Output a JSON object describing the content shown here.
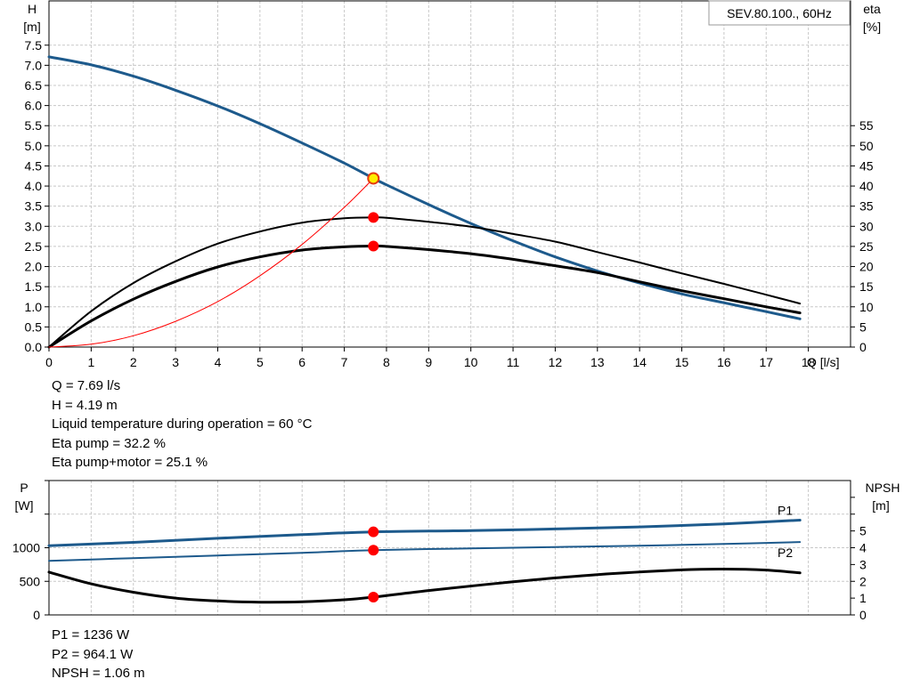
{
  "chart_data": [
    {
      "type": "line",
      "title": "SEV.80.100., 60Hz",
      "xlabel": "Q [l/s]",
      "xlim": [
        0,
        19
      ],
      "xticks": [
        0,
        1,
        2,
        3,
        4,
        5,
        6,
        7,
        8,
        9,
        10,
        11,
        12,
        13,
        14,
        15,
        16,
        17,
        18
      ],
      "ylabel_left": [
        "H",
        "[m]"
      ],
      "ylim_left": [
        0,
        8.6
      ],
      "yticks_left": [
        "0.0",
        "0.5",
        "1.0",
        "1.5",
        "2.0",
        "2.5",
        "3.0",
        "3.5",
        "4.0",
        "4.5",
        "5.0",
        "5.5",
        "6.0",
        "6.5",
        "7.0",
        "7.5"
      ],
      "ylabel_right": [
        "eta",
        "[%]"
      ],
      "ylim_right": [
        0,
        86
      ],
      "yticks_right": [
        "0",
        "5",
        "10",
        "15",
        "20",
        "25",
        "30",
        "35",
        "40",
        "45",
        "50",
        "55"
      ],
      "grid": true,
      "series": [
        {
          "axis": "left",
          "color": "#1d5a8c",
          "x": [
            0,
            1,
            2,
            3,
            4,
            5,
            6,
            7,
            7.69,
            8,
            9,
            10,
            11,
            12,
            13,
            14,
            15,
            16,
            17,
            17.8
          ],
          "y": [
            7.21,
            7.01,
            6.73,
            6.38,
            5.99,
            5.55,
            5.07,
            4.57,
            4.19,
            4.03,
            3.54,
            3.07,
            2.64,
            2.24,
            1.89,
            1.59,
            1.32,
            1.1,
            0.88,
            0.7
          ]
        },
        {
          "axis": "right",
          "color": "#000000",
          "x": [
            0,
            1,
            2,
            3,
            4,
            5,
            6,
            7,
            7.69,
            8,
            9,
            10,
            11,
            12,
            13,
            14,
            15,
            16,
            17,
            17.8
          ],
          "y": [
            0,
            8.9,
            15.9,
            21.3,
            25.7,
            28.7,
            30.9,
            32.0,
            32.2,
            32.1,
            31.1,
            29.9,
            28.1,
            26.2,
            23.6,
            21.0,
            18.3,
            15.7,
            13.0,
            10.8
          ]
        },
        {
          "axis": "right",
          "color": "#000000",
          "x": [
            0,
            1,
            2,
            3,
            4,
            5,
            6,
            7,
            7.69,
            8,
            9,
            10,
            11,
            12,
            13,
            14,
            15,
            16,
            17,
            17.8
          ],
          "y": [
            0,
            6.5,
            11.9,
            16.3,
            19.9,
            22.4,
            24.1,
            24.9,
            25.1,
            25.0,
            24.2,
            23.2,
            21.8,
            20.2,
            18.5,
            16.2,
            14.0,
            12.0,
            10.0,
            8.5
          ]
        },
        {
          "axis": "left",
          "color": "#ff0000",
          "x": [
            0,
            1,
            2,
            3,
            4,
            5,
            6,
            7,
            7.69
          ],
          "y": [
            0,
            0.07,
            0.28,
            0.64,
            1.13,
            1.77,
            2.55,
            3.47,
            4.19
          ]
        }
      ],
      "markers": [
        {
          "axis": "left",
          "x": 7.69,
          "y": 4.19,
          "color": "#ffee00",
          "stroke": "#e53b10"
        },
        {
          "axis": "right",
          "x": 7.69,
          "y": 32.2,
          "color": "#ff0000"
        },
        {
          "axis": "right",
          "x": 7.69,
          "y": 25.1,
          "color": "#ff0000"
        }
      ]
    },
    {
      "type": "line",
      "ylabel_left": [
        "P",
        "[W]"
      ],
      "ylim_left": [
        0,
        2000
      ],
      "yticks_left": [
        "0",
        "500",
        "1000"
      ],
      "ylabel_right": [
        "NPSH",
        "[m]"
      ],
      "ylim_right": [
        0,
        8
      ],
      "yticks_right": [
        "0",
        "1",
        "2",
        "3",
        "4",
        "5"
      ],
      "grid": true,
      "series": [
        {
          "name": "P1",
          "axis": "left",
          "color": "#1d5a8c",
          "x": [
            0,
            2,
            4,
            6,
            7.69,
            10,
            12,
            14,
            16,
            17.8
          ],
          "y": [
            1030,
            1080,
            1140,
            1195,
            1236,
            1255,
            1280,
            1310,
            1355,
            1410
          ]
        },
        {
          "name": "P2",
          "axis": "left",
          "color": "#1d5a8c",
          "x": [
            0,
            2,
            4,
            6,
            7.69,
            10,
            12,
            14,
            16,
            17.8
          ],
          "y": [
            805,
            845,
            885,
            925,
            964,
            990,
            1010,
            1030,
            1055,
            1085
          ]
        },
        {
          "axis": "right",
          "color": "#000000",
          "x": [
            0,
            1,
            2,
            3,
            4,
            5,
            6,
            7,
            7.69,
            9,
            11,
            13,
            15,
            16,
            17,
            17.8
          ],
          "y": [
            2.55,
            1.85,
            1.35,
            1.0,
            0.83,
            0.76,
            0.78,
            0.9,
            1.06,
            1.45,
            1.97,
            2.4,
            2.68,
            2.73,
            2.67,
            2.5
          ]
        }
      ],
      "markers": [
        {
          "axis": "left",
          "x": 7.69,
          "y": 1236,
          "color": "#ff0000"
        },
        {
          "axis": "left",
          "x": 7.69,
          "y": 964.1,
          "color": "#ff0000"
        },
        {
          "axis": "right",
          "x": 7.69,
          "y": 1.06,
          "color": "#ff0000"
        }
      ]
    }
  ],
  "readout_top": [
    "Q = 7.69 l/s",
    "H = 4.19 m",
    "Liquid temperature during operation = 60 °C",
    "Eta pump = 32.2 %",
    "Eta pump+motor = 25.1 %"
  ],
  "readout_bottom": [
    "P1 = 1236 W",
    "P2 = 964.1 W",
    "NPSH = 1.06 m"
  ]
}
